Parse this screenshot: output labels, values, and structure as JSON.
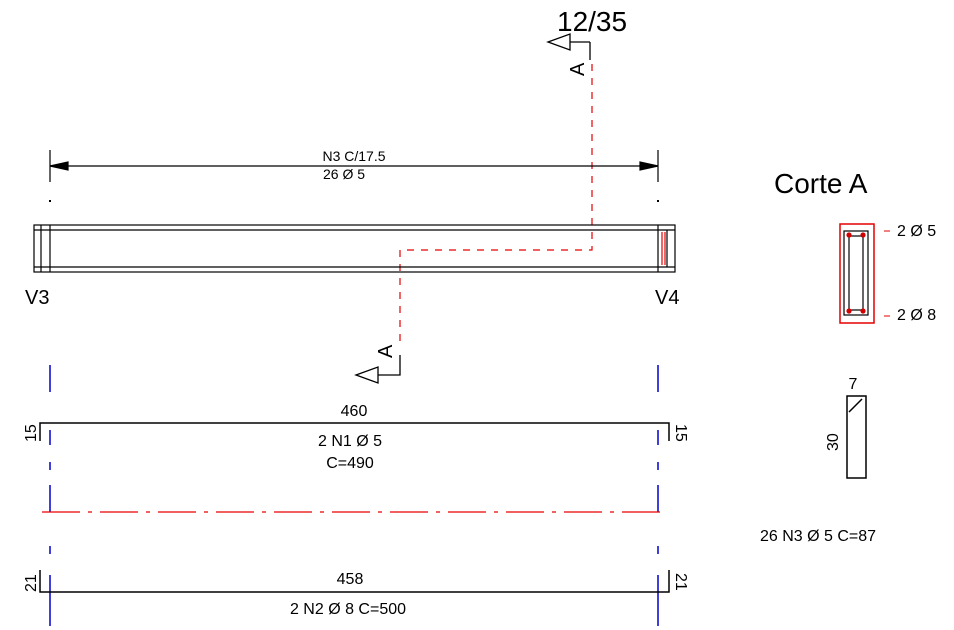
{
  "colors": {
    "line": "#000000",
    "section_cut": "#e60000",
    "axis": "#0000cc",
    "rebar_dot": "#d40000"
  },
  "labels": {
    "beam_id": "12/35",
    "section_letter_top": "A",
    "section_letter_bottom": "A",
    "support_left": "V3",
    "support_right": "V4",
    "stirrup_spec_line1": "N3   C/17.5",
    "stirrup_spec_line2": "26    Ø 5",
    "section_title": "Corte A",
    "section_top_bars": "2 Ø 5",
    "section_bottom_bars": "2 Ø 8",
    "n1_length": "460",
    "n1_hook_left": "15",
    "n1_hook_right": "15",
    "n1_desc": "2   N1   Ø 5",
    "n1_total": "C=490",
    "n2_length": "458",
    "n2_hook_left": "21",
    "n2_hook_right": "21",
    "n2_desc": "2   N2   Ø 8    C=500",
    "stirrup_width": "7",
    "stirrup_height": "30",
    "stirrup_summary": "26    N3    Ø 5      C=87"
  }
}
